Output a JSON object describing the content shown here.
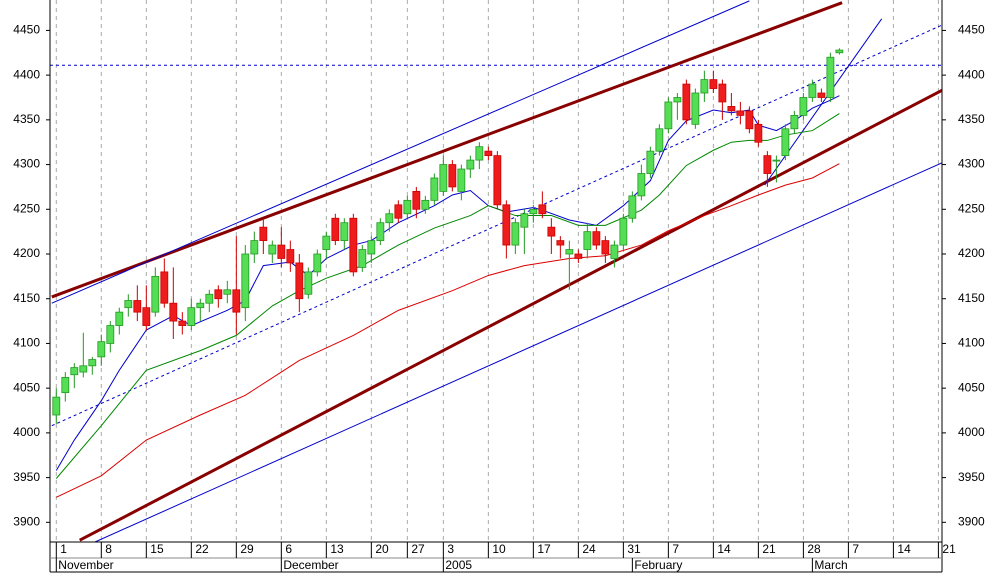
{
  "chart_data": {
    "type": "candlestick",
    "xlim": [
      -0.7,
      98.4
    ],
    "ylim": [
      3878,
      4484
    ],
    "yticks": [
      3900,
      3950,
      4000,
      4050,
      4100,
      4150,
      4200,
      4250,
      4300,
      4350,
      4400,
      4450
    ],
    "xticks": [
      {
        "value": 0,
        "label": "1"
      },
      {
        "value": 5,
        "label": "8"
      },
      {
        "value": 10,
        "label": "15"
      },
      {
        "value": 15,
        "label": "22"
      },
      {
        "value": 20,
        "label": "29"
      },
      {
        "value": 25,
        "label": "6"
      },
      {
        "value": 30,
        "label": "13"
      },
      {
        "value": 35,
        "label": "20"
      },
      {
        "value": 39,
        "label": "27"
      },
      {
        "value": 43,
        "label": "3"
      },
      {
        "value": 48,
        "label": "10"
      },
      {
        "value": 53,
        "label": "17"
      },
      {
        "value": 58,
        "label": "24"
      },
      {
        "value": 63,
        "label": "31"
      },
      {
        "value": 68,
        "label": "7"
      },
      {
        "value": 73,
        "label": "14"
      },
      {
        "value": 78,
        "label": "21"
      },
      {
        "value": 83,
        "label": "28"
      },
      {
        "value": 88,
        "label": "7"
      },
      {
        "value": 93,
        "label": "14"
      },
      {
        "value": 98,
        "label": "21"
      }
    ],
    "month_labels": [
      {
        "value": 0,
        "label": "November"
      },
      {
        "value": 25,
        "label": "December"
      },
      {
        "value": 43,
        "label": "2005"
      },
      {
        "value": 64,
        "label": "February"
      },
      {
        "value": 84,
        "label": "March"
      }
    ],
    "grid": true,
    "up_color": "#55dd55",
    "down_color": "#ee1c1c",
    "ohlc": {
      "x": [
        0,
        1,
        2,
        3,
        4,
        5,
        6,
        7,
        8,
        9,
        10,
        11,
        12,
        13,
        14,
        15,
        16,
        17,
        18,
        19,
        20,
        21,
        22,
        23,
        24,
        25,
        26,
        27,
        28,
        29,
        30,
        31,
        32,
        33,
        34,
        35,
        36,
        37,
        38,
        39,
        40,
        41,
        42,
        43,
        44,
        45,
        46,
        47,
        48,
        49,
        50,
        51,
        52,
        53,
        54,
        55,
        56,
        57,
        58,
        59,
        60,
        61,
        62,
        63,
        64,
        65,
        66,
        67,
        68,
        69,
        70,
        71,
        72,
        73,
        74,
        75,
        76,
        77,
        78,
        79,
        80,
        81,
        82,
        83,
        84,
        85,
        86,
        87
      ],
      "open": [
        4020,
        4045,
        4065,
        4068,
        4075,
        4085,
        4100,
        4120,
        4140,
        4148,
        4140,
        4135,
        4180,
        4145,
        4125,
        4120,
        4140,
        4145,
        4160,
        4155,
        4160,
        4140,
        4200,
        4230,
        4200,
        4210,
        4205,
        4190,
        4155,
        4180,
        4205,
        4240,
        4215,
        4240,
        4185,
        4200,
        4215,
        4235,
        4255,
        4245,
        4270,
        4250,
        4260,
        4270,
        4300,
        4270,
        4295,
        4305,
        4315,
        4310,
        4255,
        4210,
        4230,
        4245,
        4255,
        4230,
        4215,
        4200,
        4200,
        4205,
        4225,
        4215,
        4195,
        4210,
        4240,
        4265,
        4290,
        4315,
        4340,
        4370,
        4390,
        4345,
        4380,
        4395,
        4390,
        4365,
        4360,
        4360,
        4345,
        4310,
        4305,
        4310,
        4340,
        4355,
        4375,
        4380,
        4375,
        4425
      ],
      "high": [
        4050,
        4068,
        4078,
        4112,
        4085,
        4110,
        4125,
        4140,
        4155,
        4165,
        4165,
        4185,
        4195,
        4185,
        4135,
        4150,
        4150,
        4160,
        4165,
        4170,
        4220,
        4210,
        4225,
        4240,
        4215,
        4230,
        4215,
        4200,
        4185,
        4205,
        4225,
        4245,
        4240,
        4245,
        4210,
        4220,
        4240,
        4250,
        4260,
        4265,
        4275,
        4265,
        4290,
        4310,
        4305,
        4300,
        4310,
        4325,
        4320,
        4315,
        4260,
        4240,
        4250,
        4255,
        4270,
        4240,
        4220,
        4215,
        4205,
        4235,
        4230,
        4220,
        4215,
        4245,
        4270,
        4300,
        4320,
        4345,
        4375,
        4380,
        4395,
        4385,
        4405,
        4405,
        4395,
        4380,
        4370,
        4365,
        4350,
        4315,
        4310,
        4345,
        4360,
        4380,
        4395,
        4385,
        4425,
        4430
      ],
      "low": [
        4010,
        4035,
        4050,
        4062,
        4065,
        4075,
        4090,
        4110,
        4130,
        4125,
        4115,
        4130,
        4140,
        4105,
        4110,
        4115,
        4125,
        4135,
        4140,
        4145,
        4110,
        4125,
        4190,
        4200,
        4190,
        4185,
        4180,
        4135,
        4150,
        4175,
        4195,
        4210,
        4205,
        4175,
        4180,
        4190,
        4210,
        4225,
        4235,
        4240,
        4240,
        4245,
        4255,
        4265,
        4270,
        4260,
        4285,
        4295,
        4305,
        4250,
        4195,
        4200,
        4200,
        4235,
        4240,
        4200,
        4195,
        4160,
        4190,
        4195,
        4205,
        4190,
        4185,
        4205,
        4235,
        4260,
        4285,
        4310,
        4335,
        4350,
        4345,
        4340,
        4370,
        4380,
        4350,
        4355,
        4345,
        4335,
        4320,
        4275,
        4280,
        4305,
        4335,
        4350,
        4370,
        4370,
        4370,
        4423
      ],
      "close": [
        4040,
        4062,
        4073,
        4075,
        4082,
        4102,
        4120,
        4135,
        4148,
        4135,
        4120,
        4175,
        4145,
        4125,
        4120,
        4140,
        4145,
        4155,
        4150,
        4160,
        4135,
        4200,
        4215,
        4215,
        4210,
        4195,
        4190,
        4150,
        4180,
        4200,
        4220,
        4215,
        4235,
        4180,
        4205,
        4215,
        4235,
        4245,
        4240,
        4260,
        4250,
        4260,
        4285,
        4300,
        4275,
        4295,
        4305,
        4320,
        4310,
        4255,
        4210,
        4235,
        4245,
        4250,
        4245,
        4220,
        4210,
        4205,
        4195,
        4225,
        4210,
        4200,
        4210,
        4240,
        4265,
        4290,
        4315,
        4340,
        4370,
        4375,
        4350,
        4380,
        4395,
        4385,
        4370,
        4360,
        4355,
        4340,
        4325,
        4290,
        4305,
        4340,
        4355,
        4375,
        4390,
        4375,
        4420,
        4428
      ]
    },
    "overlays": [
      {
        "color": "#0000cc",
        "x": [
          0,
          2,
          5,
          7,
          10,
          13,
          15,
          19,
          21,
          23,
          26,
          28,
          30,
          33,
          35,
          38,
          42,
          44,
          46,
          48,
          50,
          53,
          54,
          57,
          60,
          63,
          66,
          68,
          70,
          73,
          75,
          77,
          78,
          80,
          82,
          84,
          86,
          87
        ],
        "values": [
          3958,
          3992,
          4036,
          4070,
          4115,
          4131,
          4120,
          4137,
          4148,
          4187,
          4191,
          4176,
          4195,
          4210,
          4215,
          4235,
          4254,
          4266,
          4271,
          4254,
          4247,
          4252,
          4249,
          4238,
          4232,
          4254,
          4282,
          4327,
          4349,
          4361,
          4358,
          4361,
          4344,
          4338,
          4349,
          4363,
          4372,
          4377
        ]
      },
      {
        "color": "#008800",
        "x": [
          0,
          5,
          10,
          16,
          20,
          24,
          27,
          30,
          34,
          38,
          42,
          46,
          48,
          51,
          55,
          58,
          61,
          65,
          67,
          70,
          73,
          75,
          77,
          79,
          81,
          84,
          87
        ],
        "values": [
          3949,
          4008,
          4070,
          4092,
          4109,
          4142,
          4159,
          4173,
          4187,
          4210,
          4229,
          4243,
          4254,
          4243,
          4243,
          4232,
          4232,
          4249,
          4266,
          4299,
          4316,
          4325,
          4327,
          4327,
          4333,
          4338,
          4357
        ]
      },
      {
        "color": "#dd0000",
        "x": [
          0,
          5,
          10,
          16,
          21,
          27,
          33,
          38,
          44,
          48,
          52,
          57,
          61,
          65,
          68,
          72,
          75,
          78,
          81,
          84,
          87
        ],
        "values": [
          3928,
          3952,
          3992,
          4020,
          4042,
          4081,
          4109,
          4137,
          4159,
          4176,
          4187,
          4195,
          4198,
          4210,
          4226,
          4243,
          4254,
          4266,
          4277,
          4285,
          4301
        ]
      }
    ],
    "lines": [
      {
        "color": "#880000",
        "width": 3,
        "dashed": false,
        "x": [
          -0.5,
          87.3
        ],
        "values": [
          4152,
          4481
        ]
      },
      {
        "color": "#880000",
        "width": 3,
        "dashed": false,
        "x": [
          2.6,
          98.4
        ],
        "values": [
          3880,
          4383
        ]
      },
      {
        "color": "#0000cc",
        "width": 1,
        "dashed": false,
        "x": [
          -0.5,
          77
        ],
        "values": [
          4145,
          4483
        ]
      },
      {
        "color": "#0000cc",
        "width": 1,
        "dashed": false,
        "x": [
          4.3,
          98.4
        ],
        "values": [
          3878,
          4302
        ]
      },
      {
        "color": "#0000cc",
        "width": 1,
        "dashed": true,
        "x": [
          -0.5,
          98.4
        ],
        "values": [
          4008,
          4456
        ]
      },
      {
        "color": "#0000cc",
        "width": 1,
        "dashed": false,
        "x": [
          78.7,
          91.7
        ],
        "values": [
          4277,
          4463
        ]
      }
    ],
    "hlines": [
      {
        "color": "#0000cc",
        "value": 4411
      }
    ]
  }
}
